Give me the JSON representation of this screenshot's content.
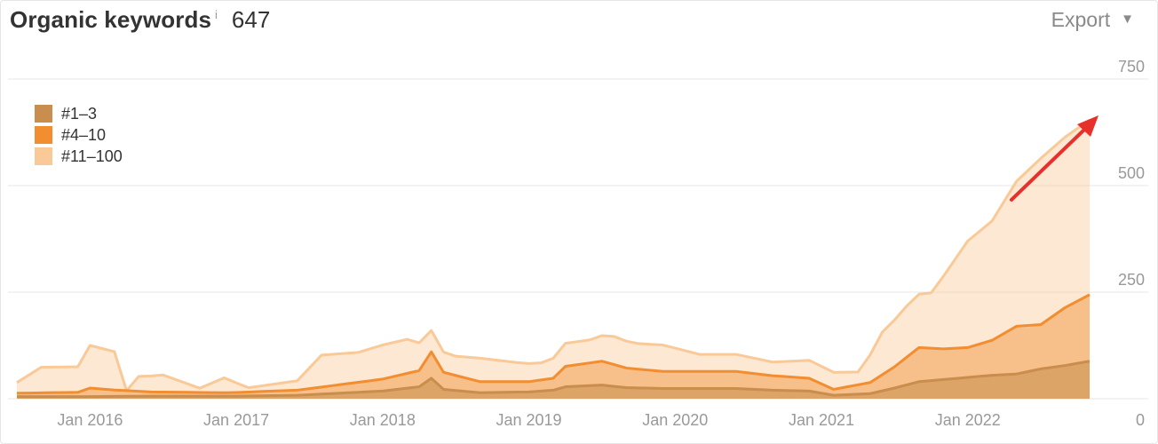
{
  "header": {
    "title": "Organic keywords",
    "info_symbol": "i",
    "count": "647",
    "export_label": "Export"
  },
  "chart_data": {
    "type": "area",
    "stacked": true,
    "x_ticks": [
      "Jan 2016",
      "Jan 2017",
      "Jan 2018",
      "Jan 2019",
      "Jan 2020",
      "Jan 2021",
      "Jan 2022"
    ],
    "y_ticks": [
      0,
      250,
      500,
      750
    ],
    "ylim": [
      0,
      750
    ],
    "xlim": [
      "2015-07",
      "2022-11"
    ],
    "grid": true,
    "legend_position": "top-left",
    "series": [
      {
        "name": "#1–3",
        "color": "#c98e4d",
        "points": [
          [
            "2015-07",
            5
          ],
          [
            "2016-01",
            5
          ],
          [
            "2016-06",
            6
          ],
          [
            "2017-01",
            6
          ],
          [
            "2017-06",
            8
          ],
          [
            "2018-01",
            18
          ],
          [
            "2018-04",
            28
          ],
          [
            "2018-05",
            48
          ],
          [
            "2018-06",
            22
          ],
          [
            "2018-09",
            14
          ],
          [
            "2019-01",
            16
          ],
          [
            "2019-03",
            20
          ],
          [
            "2019-04",
            28
          ],
          [
            "2019-07",
            32
          ],
          [
            "2019-09",
            26
          ],
          [
            "2019-12",
            24
          ],
          [
            "2020-06",
            24
          ],
          [
            "2020-09",
            20
          ],
          [
            "2020-12",
            18
          ],
          [
            "2021-02",
            8
          ],
          [
            "2021-05",
            12
          ],
          [
            "2021-07",
            25
          ],
          [
            "2021-09",
            40
          ],
          [
            "2021-11",
            45
          ],
          [
            "2022-01",
            50
          ],
          [
            "2022-03",
            55
          ],
          [
            "2022-05",
            58
          ],
          [
            "2022-07",
            70
          ],
          [
            "2022-09",
            78
          ],
          [
            "2022-11",
            88
          ]
        ]
      },
      {
        "name": "#4–10",
        "color": "#f28d30",
        "points": [
          [
            "2015-07",
            8
          ],
          [
            "2015-12",
            10
          ],
          [
            "2016-01",
            20
          ],
          [
            "2016-03",
            15
          ],
          [
            "2016-06",
            10
          ],
          [
            "2016-12",
            8
          ],
          [
            "2017-06",
            12
          ],
          [
            "2018-01",
            28
          ],
          [
            "2018-04",
            38
          ],
          [
            "2018-05",
            62
          ],
          [
            "2018-06",
            40
          ],
          [
            "2018-09",
            26
          ],
          [
            "2019-01",
            24
          ],
          [
            "2019-03",
            28
          ],
          [
            "2019-04",
            48
          ],
          [
            "2019-07",
            56
          ],
          [
            "2019-09",
            46
          ],
          [
            "2019-12",
            40
          ],
          [
            "2020-06",
            40
          ],
          [
            "2020-09",
            34
          ],
          [
            "2020-12",
            30
          ],
          [
            "2021-02",
            14
          ],
          [
            "2021-05",
            26
          ],
          [
            "2021-07",
            50
          ],
          [
            "2021-09",
            80
          ],
          [
            "2021-11",
            72
          ],
          [
            "2022-01",
            70
          ],
          [
            "2022-03",
            82
          ],
          [
            "2022-05",
            112
          ],
          [
            "2022-07",
            104
          ],
          [
            "2022-09",
            136
          ],
          [
            "2022-11",
            156
          ]
        ]
      },
      {
        "name": "#11–100",
        "color": "#f9c997",
        "points": [
          [
            "2015-07",
            25
          ],
          [
            "2015-09",
            60
          ],
          [
            "2015-12",
            60
          ],
          [
            "2016-01",
            100
          ],
          [
            "2016-03",
            90
          ],
          [
            "2016-04",
            0
          ],
          [
            "2016-05",
            35
          ],
          [
            "2016-07",
            40
          ],
          [
            "2016-10",
            10
          ],
          [
            "2016-12",
            35
          ],
          [
            "2017-02",
            10
          ],
          [
            "2017-06",
            22
          ],
          [
            "2017-08",
            75
          ],
          [
            "2017-11",
            70
          ],
          [
            "2018-01",
            80
          ],
          [
            "2018-03",
            80
          ],
          [
            "2018-05",
            50
          ],
          [
            "2018-07",
            45
          ],
          [
            "2018-09",
            55
          ],
          [
            "2018-12",
            45
          ],
          [
            "2019-02",
            40
          ],
          [
            "2019-04",
            54
          ],
          [
            "2019-06",
            54
          ],
          [
            "2019-08",
            66
          ],
          [
            "2019-10",
            60
          ],
          [
            "2019-12",
            62
          ],
          [
            "2020-03",
            40
          ],
          [
            "2020-06",
            40
          ],
          [
            "2020-09",
            32
          ],
          [
            "2020-12",
            42
          ],
          [
            "2021-02",
            40
          ],
          [
            "2021-04",
            30
          ],
          [
            "2021-06",
            100
          ],
          [
            "2021-08",
            120
          ],
          [
            "2021-10",
            130
          ],
          [
            "2022-01",
            250
          ],
          [
            "2022-03",
            280
          ],
          [
            "2022-05",
            340
          ],
          [
            "2022-07",
            390
          ],
          [
            "2022-09",
            400
          ],
          [
            "2022-11",
            410
          ]
        ]
      }
    ],
    "annotation": "up-trend-arrow"
  },
  "colors": {
    "top3": "#c98e4d",
    "top10": "#f28d30",
    "top100": "#f9c997",
    "arrow": "#e8302a"
  }
}
